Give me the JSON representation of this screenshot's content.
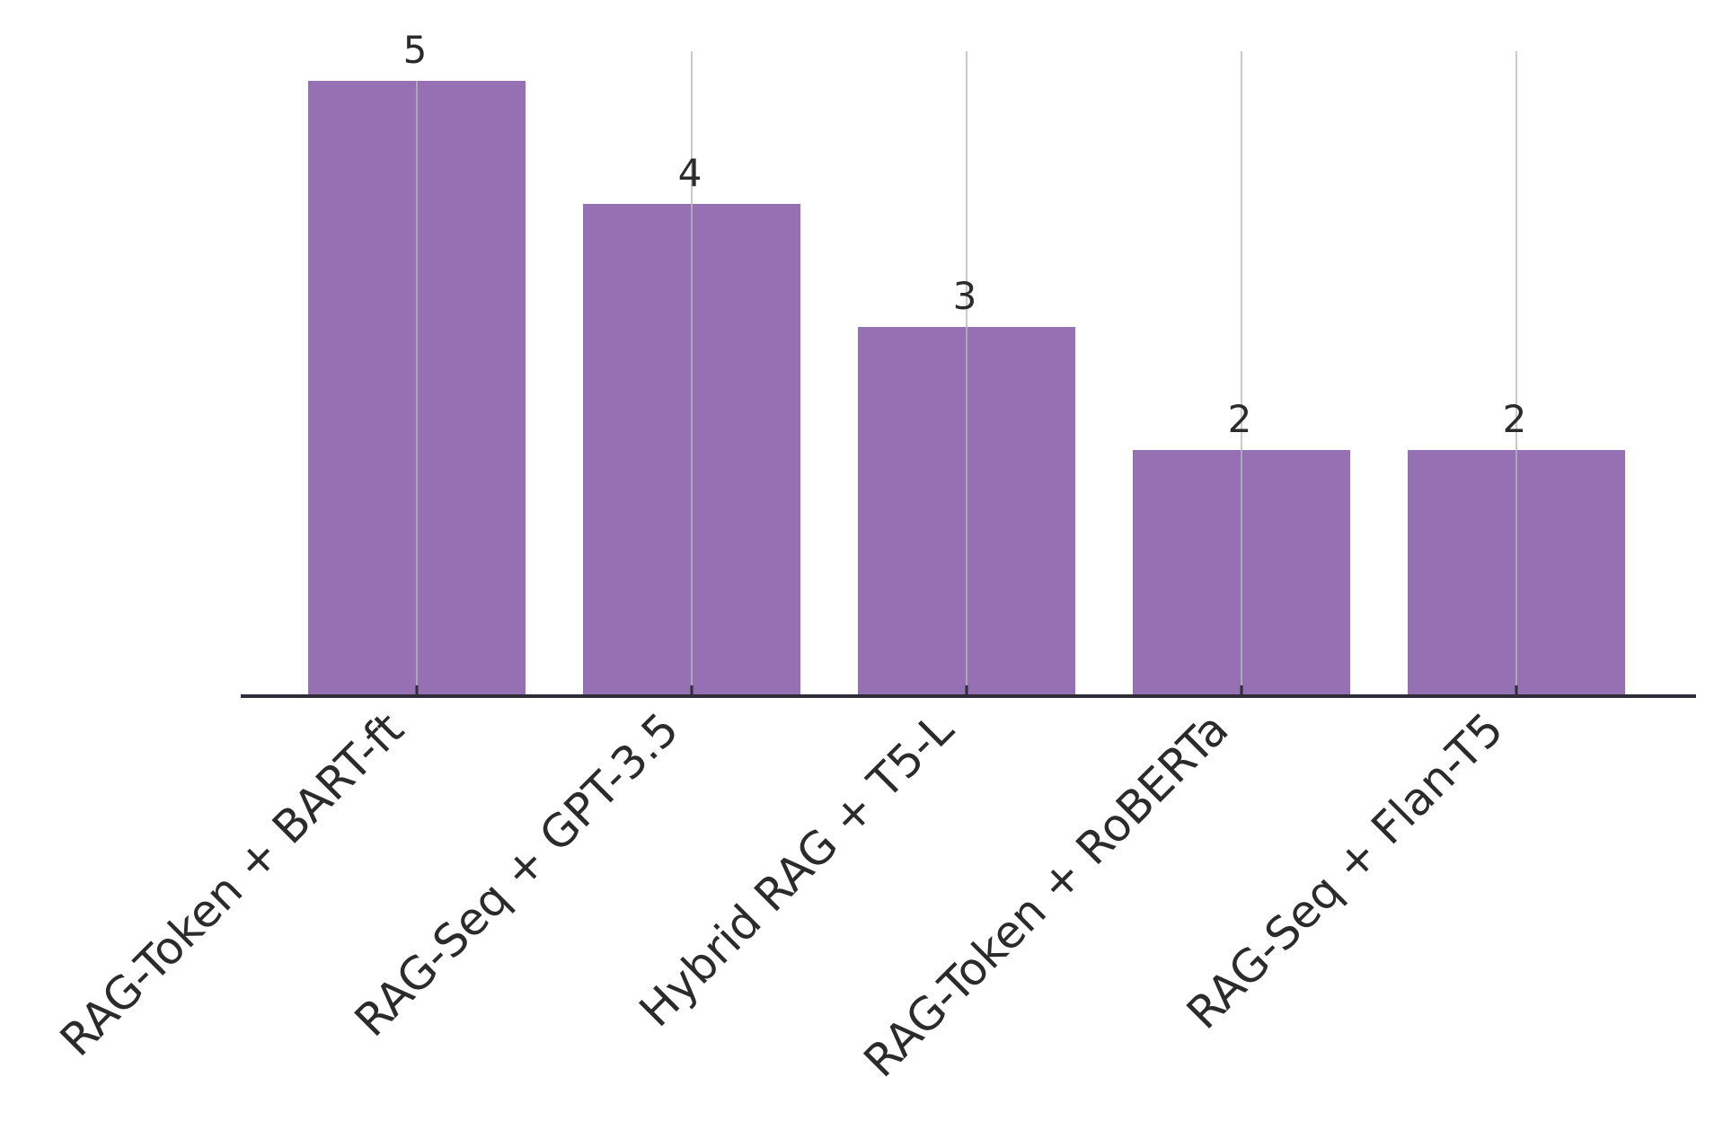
{
  "chart_data": {
    "type": "bar",
    "categories": [
      "RAG-Token + BART-ft",
      "RAG-Seq + GPT-3.5",
      "Hybrid RAG + T5-L",
      "RAG-Token + RoBERTa",
      "RAG-Seq + Flan-T5"
    ],
    "values": [
      5,
      4,
      3,
      2,
      2
    ],
    "data_labels": [
      "5",
      "4",
      "3",
      "2",
      "2"
    ],
    "title": "",
    "xlabel": "",
    "ylabel": "",
    "ylim": [
      0,
      5.25
    ],
    "grid": false,
    "legend": "none",
    "bar_color": "#9570b2",
    "axis_color": "#2e2e3a",
    "guide_line_color": "#b8b8b8"
  }
}
